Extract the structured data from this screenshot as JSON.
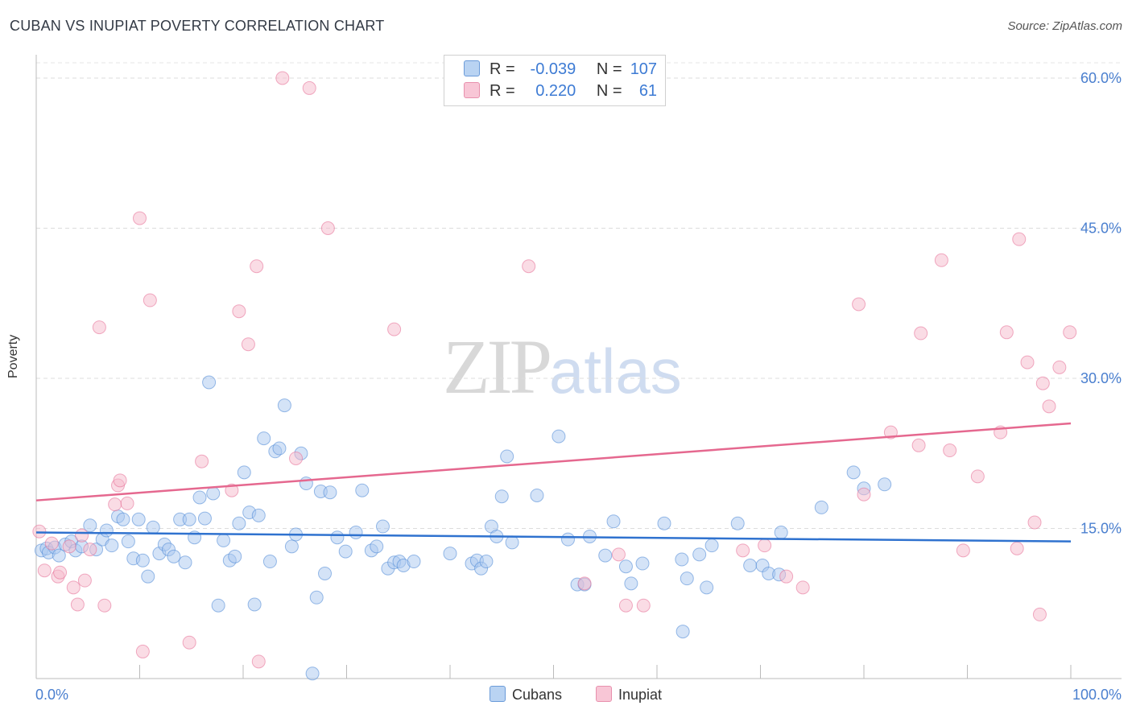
{
  "title": "CUBAN VS INUPIAT POVERTY CORRELATION CHART",
  "source": "Source: ZipAtlas.com",
  "watermark": {
    "zip": "ZIP",
    "atlas": "atlas"
  },
  "legend": {
    "r_label": "R =",
    "n_label": "N =",
    "rows": [
      {
        "r": "-0.039",
        "n": "107"
      },
      {
        "r": "0.220",
        "n": "61"
      }
    ]
  },
  "colors": {
    "cubans": "#4a86d6",
    "inupiat": "#e56b93",
    "cubans_fill": "#a9c8ef",
    "inupiat_fill": "#f5b9cc"
  },
  "chart_data": {
    "type": "scatter",
    "ylabel": "Poverty",
    "xlim": [
      0,
      100
    ],
    "ylim": [
      0,
      63
    ],
    "x_ticks": [
      "0.0%",
      "100.0%"
    ],
    "y_ticks": [
      {
        "value": 15,
        "label": "15.0%"
      },
      {
        "value": 30,
        "label": "30.0%"
      },
      {
        "value": 45,
        "label": "45.0%"
      },
      {
        "value": 60,
        "label": "60.0%"
      }
    ],
    "grid": true,
    "legend_position": "top-center",
    "series": [
      {
        "name": "Cubans",
        "trend": [
          [
            0,
            14.6
          ],
          [
            100,
            13.7
          ]
        ],
        "points": [
          [
            0.5,
            12.8
          ],
          [
            1,
            13
          ],
          [
            1.2,
            12.6
          ],
          [
            1.8,
            13.1
          ],
          [
            2.2,
            12.3
          ],
          [
            2.8,
            13.4
          ],
          [
            3.4,
            13.7
          ],
          [
            3.8,
            12.8
          ],
          [
            4.4,
            13.2
          ],
          [
            5.2,
            15.3
          ],
          [
            5.8,
            12.9
          ],
          [
            6.4,
            13.9
          ],
          [
            6.8,
            14.8
          ],
          [
            7.3,
            13.3
          ],
          [
            7.9,
            16.2
          ],
          [
            8.4,
            15.9
          ],
          [
            8.9,
            13.7
          ],
          [
            9.4,
            12
          ],
          [
            9.9,
            15.9
          ],
          [
            10.3,
            11.8
          ],
          [
            10.8,
            10.2
          ],
          [
            11.3,
            15.1
          ],
          [
            11.9,
            12.5
          ],
          [
            12.4,
            13.4
          ],
          [
            12.8,
            12.9
          ],
          [
            13.3,
            12.2
          ],
          [
            13.9,
            15.9
          ],
          [
            14.4,
            11.6
          ],
          [
            14.8,
            15.9
          ],
          [
            15.3,
            14.1
          ],
          [
            15.8,
            18.1
          ],
          [
            16.3,
            16
          ],
          [
            16.7,
            29.6
          ],
          [
            17.1,
            18.5
          ],
          [
            17.6,
            7.3
          ],
          [
            18.1,
            13.8
          ],
          [
            18.7,
            11.8
          ],
          [
            19.2,
            12.2
          ],
          [
            19.6,
            15.5
          ],
          [
            20.1,
            20.6
          ],
          [
            20.6,
            16.6
          ],
          [
            21.1,
            7.4
          ],
          [
            21.5,
            16.3
          ],
          [
            22,
            24
          ],
          [
            22.6,
            11.7
          ],
          [
            23.1,
            22.7
          ],
          [
            23.5,
            23
          ],
          [
            24,
            27.3
          ],
          [
            24.7,
            13.2
          ],
          [
            25.1,
            14.4
          ],
          [
            25.6,
            22.5
          ],
          [
            26.1,
            19.5
          ],
          [
            26.7,
            0.5
          ],
          [
            27.1,
            8.1
          ],
          [
            27.5,
            18.7
          ],
          [
            27.9,
            10.5
          ],
          [
            28.4,
            18.6
          ],
          [
            29.1,
            14.1
          ],
          [
            29.9,
            12.7
          ],
          [
            30.9,
            14.6
          ],
          [
            31.5,
            18.8
          ],
          [
            32.4,
            12.8
          ],
          [
            32.9,
            13.2
          ],
          [
            33.5,
            15.2
          ],
          [
            34,
            11
          ],
          [
            34.6,
            11.6
          ],
          [
            35.1,
            11.7
          ],
          [
            35.5,
            11.3
          ],
          [
            36.5,
            11.7
          ],
          [
            40,
            12.5
          ],
          [
            42.1,
            11.5
          ],
          [
            42.6,
            11.8
          ],
          [
            43,
            11
          ],
          [
            43.5,
            11.7
          ],
          [
            44,
            15.2
          ],
          [
            44.5,
            14.2
          ],
          [
            45,
            18.2
          ],
          [
            45.5,
            22.2
          ],
          [
            46,
            13.6
          ],
          [
            48.4,
            18.3
          ],
          [
            50.5,
            24.2
          ],
          [
            51.4,
            13.9
          ],
          [
            52.3,
            9.4
          ],
          [
            53,
            9.4
          ],
          [
            53.5,
            14.2
          ],
          [
            55,
            12.3
          ],
          [
            55.8,
            15.7
          ],
          [
            57,
            11.2
          ],
          [
            58.6,
            11.5
          ],
          [
            60.7,
            15.5
          ],
          [
            62.4,
            11.9
          ],
          [
            62.9,
            10
          ],
          [
            64.1,
            12.4
          ],
          [
            64.8,
            9.1
          ],
          [
            65.3,
            13.3
          ],
          [
            67.8,
            15.5
          ],
          [
            69,
            11.3
          ],
          [
            70.2,
            11.3
          ],
          [
            70.8,
            10.5
          ],
          [
            71.8,
            10.4
          ],
          [
            72,
            14.6
          ],
          [
            75.9,
            17.1
          ],
          [
            79,
            20.6
          ],
          [
            80,
            19
          ],
          [
            82,
            19.4
          ],
          [
            62.5,
            4.7
          ],
          [
            57.5,
            9.5
          ]
        ]
      },
      {
        "name": "Inupiat",
        "trend": [
          [
            0,
            17.8
          ],
          [
            100,
            25.5
          ]
        ],
        "points": [
          [
            0.3,
            14.7
          ],
          [
            0.8,
            10.8
          ],
          [
            1.5,
            13.5
          ],
          [
            2.1,
            10.2
          ],
          [
            2.3,
            10.6
          ],
          [
            3.2,
            13.2
          ],
          [
            3.6,
            9.1
          ],
          [
            4,
            7.4
          ],
          [
            4.4,
            14.3
          ],
          [
            4.7,
            9.8
          ],
          [
            5.2,
            12.9
          ],
          [
            6.1,
            35.1
          ],
          [
            6.6,
            7.3
          ],
          [
            7.6,
            17.4
          ],
          [
            7.9,
            19.3
          ],
          [
            8.1,
            19.8
          ],
          [
            8.8,
            17.5
          ],
          [
            10,
            46
          ],
          [
            10.3,
            2.7
          ],
          [
            11,
            37.8
          ],
          [
            14.8,
            3.6
          ],
          [
            16,
            21.7
          ],
          [
            18.9,
            18.8
          ],
          [
            19.6,
            36.7
          ],
          [
            20.5,
            33.4
          ],
          [
            21.3,
            41.2
          ],
          [
            21.5,
            1.7
          ],
          [
            23.8,
            60
          ],
          [
            25.1,
            22
          ],
          [
            26.4,
            59
          ],
          [
            28.2,
            45
          ],
          [
            34.6,
            34.9
          ],
          [
            47.6,
            41.2
          ],
          [
            53,
            9.5
          ],
          [
            56.3,
            12.4
          ],
          [
            57,
            7.3
          ],
          [
            58.7,
            7.3
          ],
          [
            68.3,
            12.8
          ],
          [
            70.4,
            13.3
          ],
          [
            72.5,
            10.2
          ],
          [
            74.1,
            9.1
          ],
          [
            79.5,
            37.4
          ],
          [
            80,
            18.4
          ],
          [
            82.6,
            24.6
          ],
          [
            85.3,
            23.3
          ],
          [
            85.5,
            34.5
          ],
          [
            87.5,
            41.8
          ],
          [
            88.3,
            22.8
          ],
          [
            89.6,
            12.8
          ],
          [
            91,
            20.2
          ],
          [
            93.2,
            24.6
          ],
          [
            93.8,
            34.6
          ],
          [
            94.8,
            13
          ],
          [
            95,
            43.9
          ],
          [
            95.8,
            31.6
          ],
          [
            96.5,
            15.6
          ],
          [
            97,
            6.4
          ],
          [
            97.3,
            29.5
          ],
          [
            97.9,
            27.2
          ],
          [
            98.9,
            31.1
          ],
          [
            99.9,
            34.6
          ]
        ]
      }
    ]
  },
  "bottom_legend": [
    "Cubans",
    "Inupiat"
  ]
}
